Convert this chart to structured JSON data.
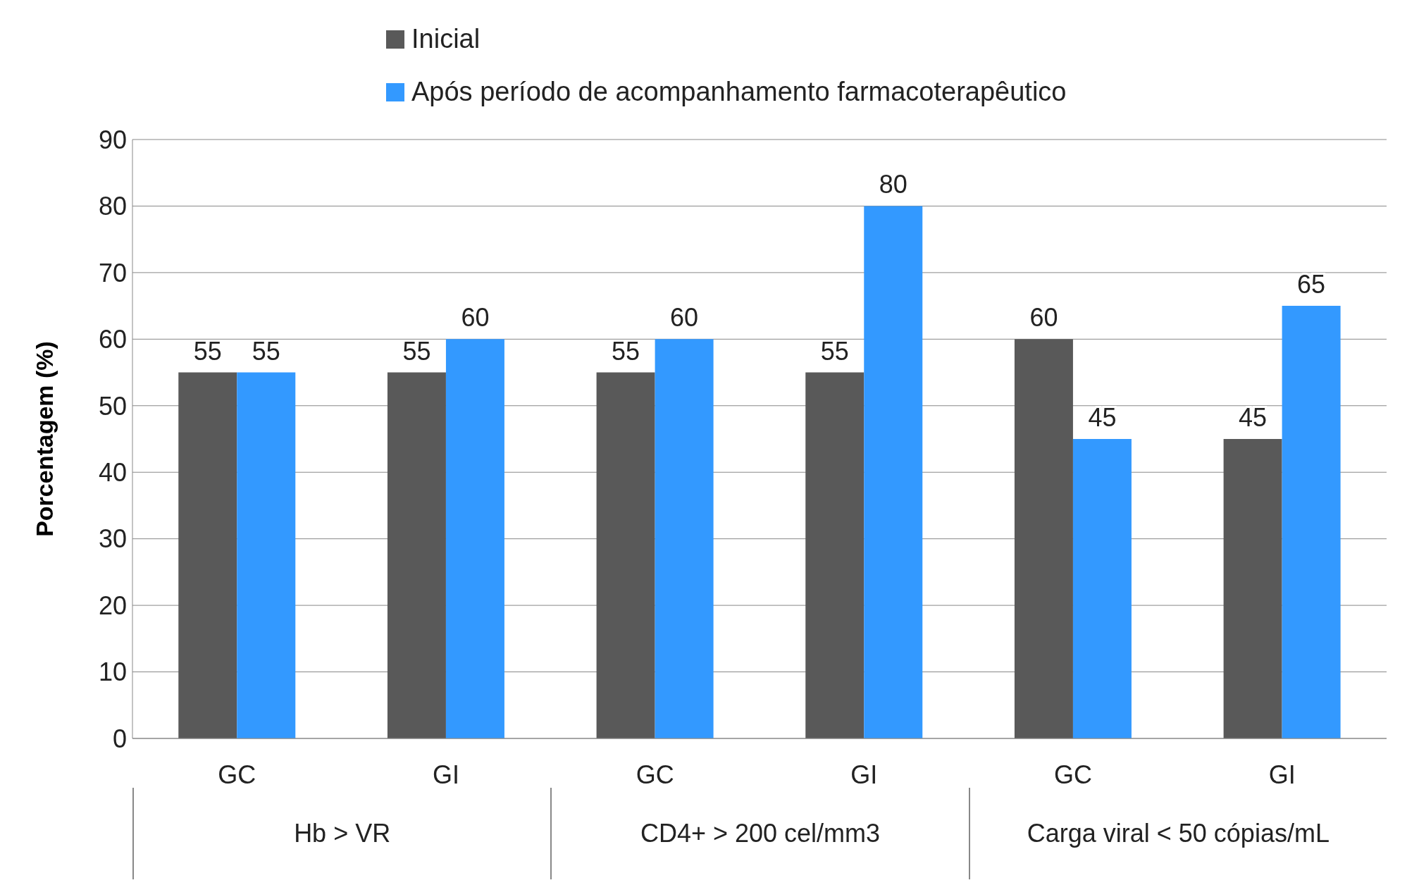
{
  "chart_data": {
    "type": "bar",
    "ylabel": "Porcentagem (%)",
    "categories": [
      "GC",
      "GI",
      "GC",
      "GI",
      "GC",
      "GI"
    ],
    "series": [
      {
        "name": "Inicial",
        "color": "#595959",
        "values": [
          55,
          55,
          55,
          55,
          60,
          45
        ]
      },
      {
        "name": "Após período de  acompanhamento farmacoterapêutico",
        "color": "#3399ff",
        "values": [
          55,
          60,
          60,
          80,
          45,
          65
        ]
      }
    ],
    "ylim": [
      0,
      90
    ],
    "yticks": [
      0,
      10,
      20,
      30,
      40,
      50,
      60,
      70,
      80,
      90
    ],
    "grid": "y",
    "legend": "top",
    "data_labels": true,
    "annotations": [
      "Hb >  VR",
      "CD4+ > 200 cel/mm3",
      "Carga viral < 50 cópias/mL"
    ]
  }
}
